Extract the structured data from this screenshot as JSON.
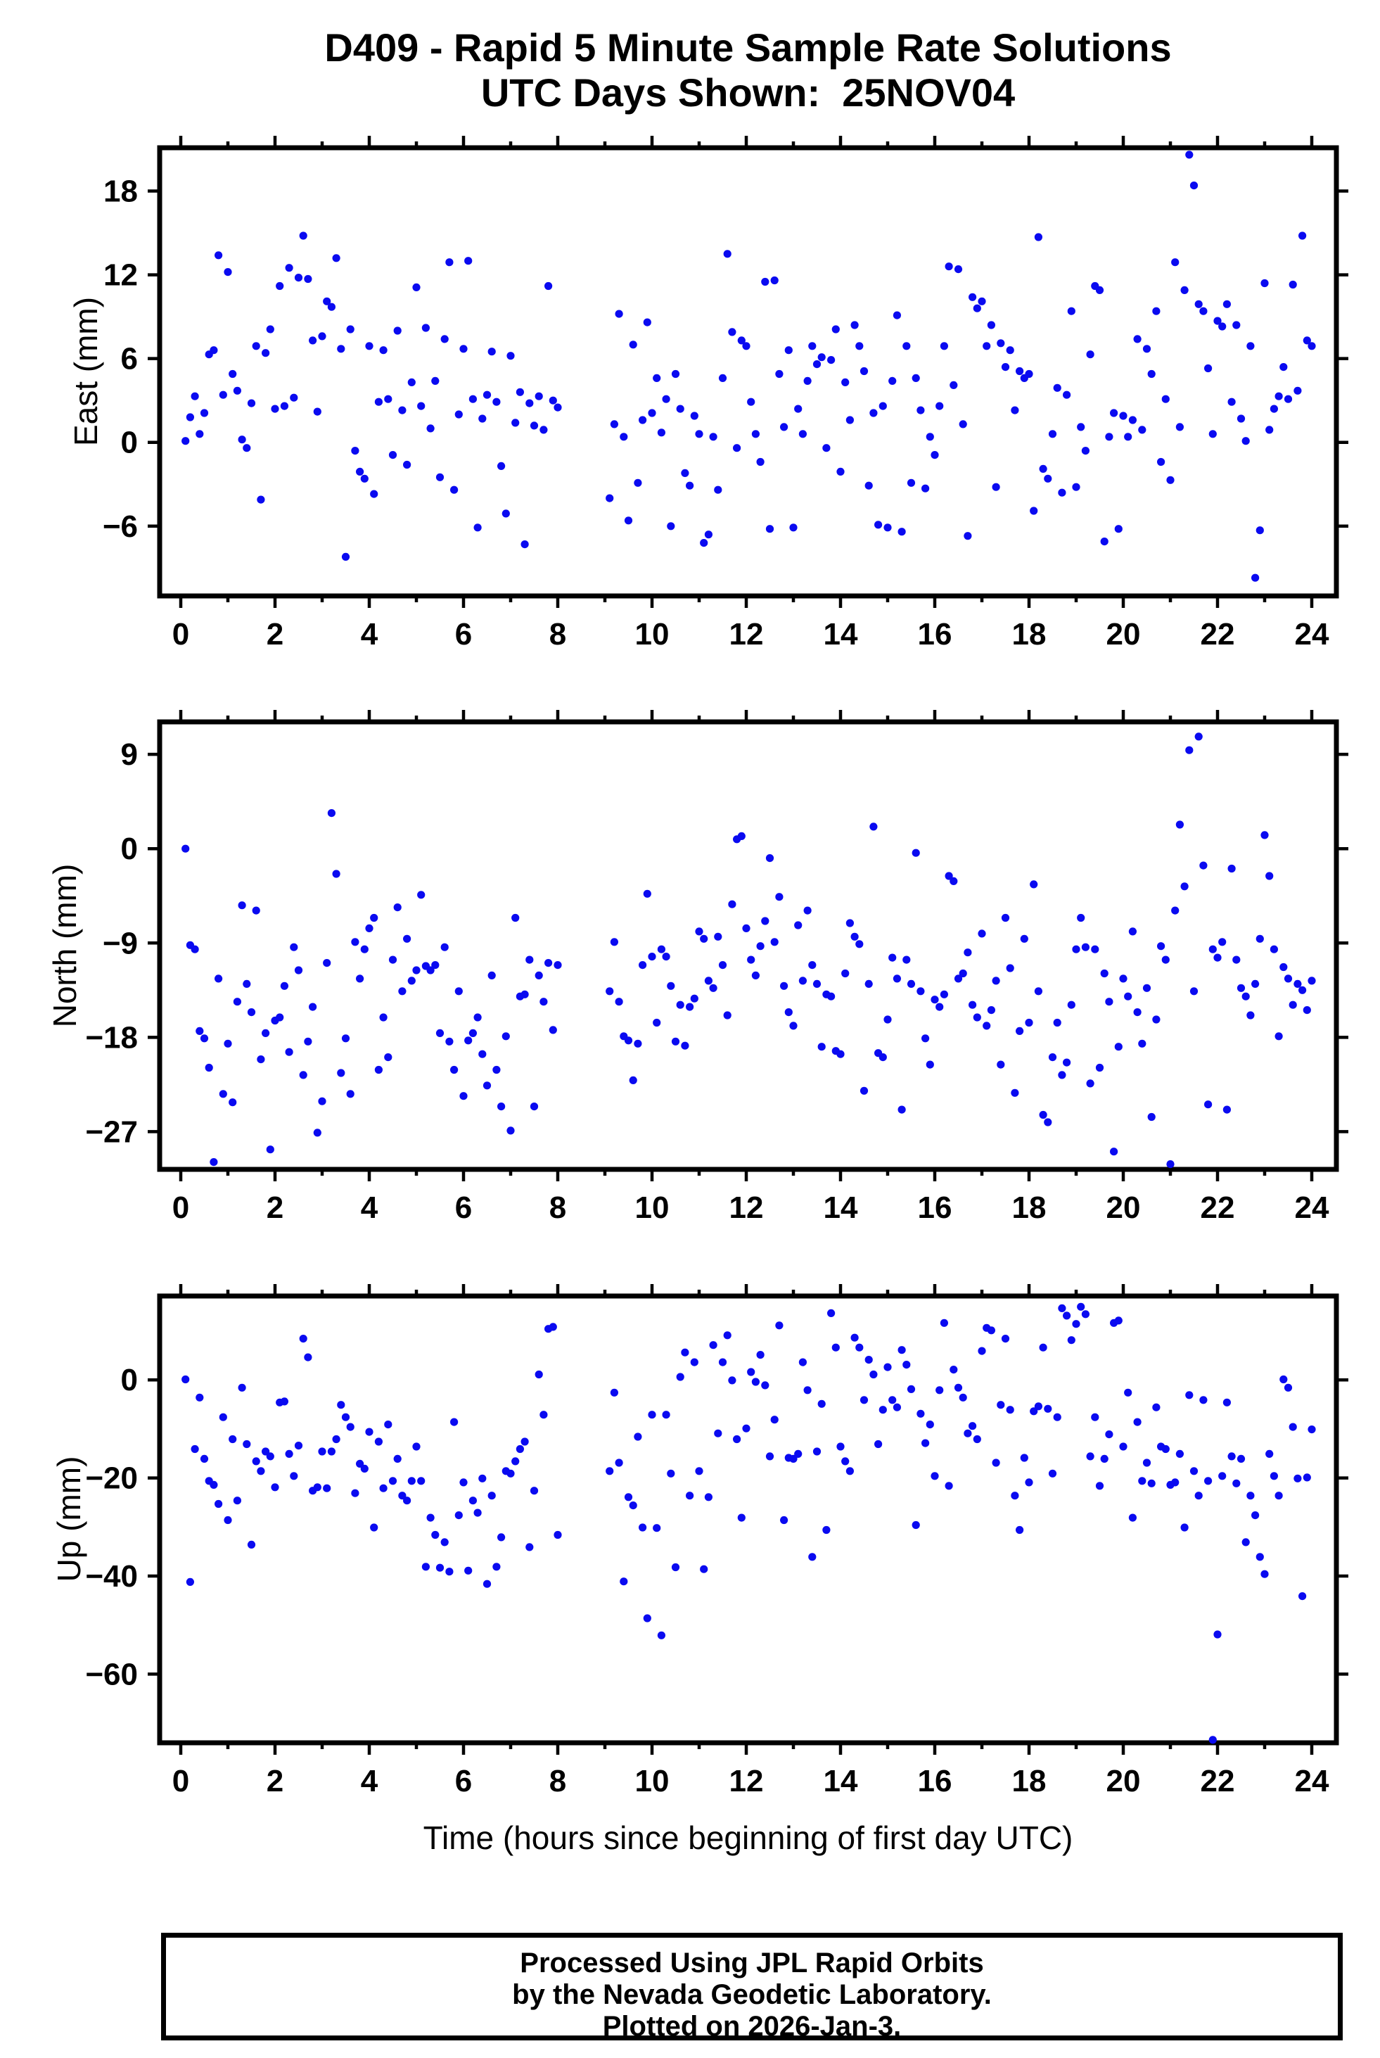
{
  "title": {
    "line1": "D409 - Rapid 5 Minute Sample Rate Solutions",
    "line2": "UTC Days Shown:  25NOV04"
  },
  "footer": {
    "line1": "Processed Using JPL Rapid Orbits",
    "line2": "by the Nevada Geodetic Laboratory.",
    "line3": "Plotted on 2026-Jan-3."
  },
  "marker": {
    "color": "#0a0af0",
    "radius": 5.6,
    "shape": "circle"
  },
  "chart_data": {
    "type": "scatter",
    "title": "D409 - Rapid 5 Minute Sample Rate Solutions",
    "subtitle": "UTC Days Shown: 25NOV04",
    "xlabel": "Time (hours since beginning of first day UTC)",
    "xlim": [
      -0.45,
      24.52
    ],
    "xticks_major": [
      0,
      2,
      4,
      6,
      8,
      10,
      12,
      14,
      16,
      18,
      20,
      22,
      24
    ],
    "xticks_minor": [
      1,
      3,
      5,
      7,
      9,
      11,
      13,
      15,
      17,
      19,
      21,
      23
    ],
    "grid": false,
    "legend": "none",
    "data_gap_hours": [
      8.0,
      9.1
    ],
    "x": [
      0.1,
      0.2,
      0.3,
      0.4,
      0.5,
      0.6,
      0.7,
      0.8,
      0.9,
      1.0,
      1.1,
      1.2,
      1.3,
      1.4,
      1.5,
      1.6,
      1.7,
      1.8,
      1.9,
      2.0,
      2.1,
      2.2,
      2.3,
      2.4,
      2.5,
      2.6,
      2.7,
      2.8,
      2.9,
      3.0,
      3.1,
      3.2,
      3.3,
      3.4,
      3.5,
      3.6,
      3.7,
      3.8,
      3.9,
      4.0,
      4.1,
      4.2,
      4.3,
      4.4,
      4.5,
      4.6,
      4.7,
      4.8,
      4.9,
      5.0,
      5.1,
      5.2,
      5.3,
      5.4,
      5.5,
      5.6,
      5.7,
      5.8,
      5.9,
      6.0,
      6.1,
      6.2,
      6.3,
      6.4,
      6.5,
      6.6,
      6.7,
      6.8,
      6.9,
      7.0,
      7.1,
      7.2,
      7.3,
      7.4,
      7.5,
      7.6,
      7.7,
      7.8,
      7.9,
      8.0,
      9.1,
      9.2,
      9.3,
      9.4,
      9.5,
      9.6,
      9.7,
      9.8,
      9.9,
      10.0,
      10.1,
      10.2,
      10.3,
      10.4,
      10.5,
      10.6,
      10.7,
      10.8,
      10.9,
      11.0,
      11.1,
      11.2,
      11.3,
      11.4,
      11.5,
      11.6,
      11.7,
      11.8,
      11.9,
      12.0,
      12.1,
      12.2,
      12.3,
      12.4,
      12.5,
      12.6,
      12.7,
      12.8,
      12.9,
      13.0,
      13.1,
      13.2,
      13.3,
      13.4,
      13.5,
      13.6,
      13.7,
      13.8,
      13.9,
      14.0,
      14.1,
      14.2,
      14.3,
      14.4,
      14.5,
      14.6,
      14.7,
      14.8,
      14.9,
      15.0,
      15.1,
      15.2,
      15.3,
      15.4,
      15.5,
      15.6,
      15.7,
      15.8,
      15.9,
      16.0,
      16.1,
      16.2,
      16.3,
      16.4,
      16.5,
      16.6,
      16.7,
      16.8,
      16.9,
      17.0,
      17.1,
      17.2,
      17.3,
      17.4,
      17.5,
      17.6,
      17.7,
      17.8,
      17.9,
      18.0,
      18.1,
      18.2,
      18.3,
      18.4,
      18.5,
      18.6,
      18.7,
      18.8,
      18.9,
      19.0,
      19.1,
      19.2,
      19.3,
      19.4,
      19.5,
      19.6,
      19.7,
      19.8,
      19.9,
      20.0,
      20.1,
      20.2,
      20.3,
      20.4,
      20.5,
      20.6,
      20.7,
      20.8,
      20.9,
      21.0,
      21.1,
      21.2,
      21.3,
      21.4,
      21.5,
      21.6,
      21.7,
      21.8,
      21.9,
      22.0,
      22.1,
      22.2,
      22.3,
      22.4,
      22.5,
      22.6,
      22.7,
      22.8,
      22.9,
      23.0,
      23.1,
      23.2,
      23.3,
      23.4,
      23.5,
      23.6,
      23.7,
      23.8,
      23.9,
      24.0
    ],
    "series": [
      {
        "name": "East (mm)",
        "ylim": [
          -11.0,
          21.1
        ],
        "yticks": [
          18,
          12,
          6,
          0,
          -6
        ],
        "values": [
          0.1,
          1.8,
          3.3,
          0.6,
          2.1,
          6.3,
          6.6,
          13.4,
          3.4,
          12.2,
          4.9,
          3.7,
          0.2,
          -0.4,
          2.8,
          6.9,
          -4.1,
          6.4,
          8.1,
          2.4,
          11.2,
          2.6,
          12.5,
          3.2,
          11.8,
          14.8,
          11.7,
          7.3,
          2.2,
          7.6,
          10.1,
          9.7,
          13.2,
          6.7,
          -8.2,
          8.1,
          -0.6,
          -2.1,
          -2.6,
          6.9,
          -3.7,
          2.9,
          6.6,
          3.1,
          -0.9,
          8.0,
          2.3,
          -1.6,
          4.3,
          11.1,
          2.6,
          8.2,
          1.0,
          4.4,
          -2.5,
          7.4,
          12.9,
          -3.4,
          2.0,
          6.7,
          13.0,
          3.1,
          -6.1,
          1.7,
          3.4,
          6.5,
          2.9,
          -1.7,
          -5.1,
          6.2,
          1.4,
          3.6,
          -7.3,
          2.8,
          1.2,
          3.3,
          0.9,
          11.2,
          3.0,
          2.5,
          -4.0,
          1.3,
          9.2,
          0.4,
          -5.6,
          7.0,
          -2.9,
          1.6,
          8.6,
          2.1,
          4.6,
          0.7,
          3.1,
          -6.0,
          4.9,
          2.4,
          -2.2,
          -3.1,
          1.9,
          0.6,
          -7.2,
          -6.6,
          0.4,
          -3.4,
          4.6,
          13.5,
          7.9,
          -0.4,
          7.3,
          6.9,
          2.9,
          0.6,
          -1.4,
          11.5,
          -6.2,
          11.6,
          4.9,
          1.1,
          6.6,
          -6.1,
          2.4,
          0.6,
          4.4,
          6.9,
          5.6,
          6.1,
          -0.4,
          5.9,
          8.1,
          -2.1,
          4.3,
          1.6,
          8.4,
          6.9,
          5.1,
          -3.1,
          2.1,
          -5.9,
          2.6,
          -6.1,
          4.4,
          9.1,
          -6.4,
          6.9,
          -2.9,
          4.6,
          2.3,
          -3.3,
          0.4,
          -0.9,
          2.6,
          6.9,
          12.6,
          4.1,
          12.4,
          1.3,
          -6.7,
          10.4,
          9.6,
          10.1,
          6.9,
          8.4,
          -3.2,
          7.1,
          5.4,
          6.6,
          2.3,
          5.1,
          4.6,
          4.9,
          -4.9,
          14.7,
          -1.9,
          -2.6,
          0.6,
          3.9,
          -3.6,
          3.4,
          9.4,
          -3.2,
          1.1,
          -0.6,
          6.3,
          11.2,
          10.9,
          -7.1,
          0.4,
          2.1,
          -6.2,
          1.9,
          0.4,
          1.6,
          7.4,
          0.9,
          6.7,
          4.9,
          9.4,
          -1.4,
          3.1,
          -2.7,
          12.9,
          1.1,
          10.9,
          20.6,
          18.4,
          9.9,
          9.4,
          5.3,
          0.6,
          8.7,
          8.3,
          9.9,
          2.9,
          8.4,
          1.7,
          0.1,
          6.9,
          -9.7,
          -6.3,
          11.4,
          0.9,
          2.4,
          3.3,
          5.4,
          3.1,
          11.3,
          3.7,
          14.8,
          7.3,
          6.9
        ]
      },
      {
        "name": "North (mm)",
        "ylim": [
          -30.6,
          12.1
        ],
        "yticks": [
          9,
          0,
          -9,
          -18,
          -27
        ],
        "values": [
          0.0,
          -9.2,
          -9.6,
          -17.4,
          -18.1,
          -20.9,
          -29.9,
          -12.4,
          -23.4,
          -18.6,
          -24.2,
          -14.6,
          -5.4,
          -12.9,
          -15.6,
          -5.9,
          -20.1,
          -17.6,
          -28.7,
          -16.4,
          -16.1,
          -13.1,
          -19.4,
          -9.4,
          -11.6,
          -21.6,
          -18.4,
          -15.1,
          -27.1,
          -24.1,
          -10.9,
          3.4,
          -2.4,
          -21.4,
          -18.1,
          -23.4,
          -8.9,
          -12.4,
          -9.6,
          -7.6,
          -6.6,
          -21.1,
          -16.1,
          -19.9,
          -10.6,
          -5.6,
          -13.6,
          -8.6,
          -12.6,
          -11.6,
          -4.4,
          -11.2,
          -11.6,
          -11.1,
          -17.6,
          -9.4,
          -18.4,
          -21.1,
          -13.6,
          -23.6,
          -18.3,
          -17.6,
          -16.1,
          -19.6,
          -22.6,
          -12.1,
          -21.1,
          -24.6,
          -17.9,
          -26.9,
          -6.6,
          -14.1,
          -13.9,
          -10.6,
          -24.6,
          -12.1,
          -14.6,
          -10.9,
          -17.3,
          -11.1,
          -13.6,
          -8.9,
          -14.6,
          -17.9,
          -18.3,
          -22.1,
          -18.6,
          -11.1,
          -4.3,
          -10.3,
          -16.6,
          -9.6,
          -10.3,
          -13.1,
          -18.4,
          -14.9,
          -18.8,
          -15.1,
          -14.3,
          -7.9,
          -8.6,
          -12.6,
          -13.3,
          -8.4,
          -11.1,
          -15.9,
          -5.3,
          0.9,
          1.2,
          -7.6,
          -10.6,
          -12.1,
          -9.3,
          -6.9,
          -0.9,
          -8.9,
          -4.6,
          -13.1,
          -15.6,
          -16.9,
          -7.3,
          -12.6,
          -5.9,
          -11.1,
          -12.9,
          -18.9,
          -13.9,
          -14.1,
          -19.3,
          -19.6,
          -11.9,
          -7.1,
          -8.4,
          -9.1,
          -23.1,
          -12.9,
          2.1,
          -19.5,
          -19.9,
          -16.3,
          -10.4,
          -12.4,
          -24.9,
          -10.6,
          -12.9,
          -0.4,
          -13.6,
          -18.1,
          -20.6,
          -14.4,
          -15.1,
          -13.9,
          -2.6,
          -3.1,
          -12.4,
          -11.9,
          -9.9,
          -14.9,
          -16.1,
          -8.1,
          -16.9,
          -15.4,
          -12.6,
          -20.6,
          -6.6,
          -11.4,
          -23.3,
          -17.4,
          -8.6,
          -16.6,
          -3.4,
          -13.6,
          -25.4,
          -26.1,
          -19.9,
          -16.6,
          -21.6,
          -20.4,
          -14.9,
          -9.6,
          -6.6,
          -9.4,
          -22.4,
          -9.6,
          -20.9,
          -11.9,
          -14.6,
          -28.9,
          -18.9,
          -12.4,
          -14.1,
          -7.9,
          -15.6,
          -18.6,
          -13.3,
          -25.6,
          -16.3,
          -9.3,
          -10.6,
          -30.1,
          -5.9,
          2.3,
          -3.6,
          9.4,
          -13.6,
          10.7,
          -1.6,
          -24.4,
          -9.6,
          -10.4,
          -8.9,
          -24.9,
          -1.9,
          -10.6,
          -13.3,
          -14.1,
          -15.9,
          -12.9,
          -8.6,
          1.3,
          -2.6,
          -9.6,
          -17.9,
          -11.3,
          -12.4,
          -14.9,
          -12.9,
          -13.5,
          -15.4,
          -12.6
        ]
      },
      {
        "name": "Up (mm)",
        "ylim": [
          -74.0,
          17.1
        ],
        "yticks": [
          0,
          -20,
          -40,
          -60
        ],
        "values": [
          0.1,
          -41.2,
          -14.1,
          -3.6,
          -16.1,
          -20.6,
          -21.4,
          -25.3,
          -7.6,
          -28.6,
          -12.1,
          -24.6,
          -1.6,
          -13.1,
          -33.6,
          -16.6,
          -18.6,
          -14.6,
          -15.6,
          -21.9,
          -4.6,
          -4.4,
          -15.1,
          -19.6,
          -13.4,
          8.4,
          4.6,
          -22.6,
          -21.9,
          -14.6,
          -22.1,
          -14.6,
          -12.1,
          -5.1,
          -7.6,
          -9.6,
          -23.1,
          -17.1,
          -18.1,
          -10.6,
          -30.1,
          -12.6,
          -22.1,
          -9.1,
          -20.6,
          -16.1,
          -23.6,
          -24.6,
          -20.6,
          -13.6,
          -20.6,
          -38.1,
          -28.1,
          -31.6,
          -38.3,
          -33.1,
          -39.1,
          -8.6,
          -27.6,
          -20.9,
          -38.9,
          -24.6,
          -27.1,
          -20.1,
          -41.6,
          -23.6,
          -38.1,
          -32.1,
          -18.6,
          -19.1,
          -16.6,
          -14.1,
          -12.6,
          -34.1,
          -22.6,
          1.1,
          -7.1,
          10.4,
          10.8,
          -31.6,
          -18.6,
          -2.6,
          -16.9,
          -41.1,
          -23.9,
          -25.6,
          -11.6,
          -30.1,
          -48.6,
          -7.1,
          -30.2,
          -52.1,
          -7.1,
          -19.1,
          -38.2,
          0.6,
          5.6,
          -23.6,
          3.6,
          -18.6,
          -38.6,
          -23.9,
          7.1,
          -10.9,
          3.6,
          9.1,
          -0.1,
          -12.1,
          -28.1,
          -9.9,
          1.6,
          -0.4,
          5.1,
          -1.1,
          -15.6,
          -8.1,
          11.1,
          -28.6,
          -15.9,
          -16.1,
          -15.1,
          3.6,
          -2.1,
          -36.1,
          -14.6,
          -4.9,
          -30.6,
          13.6,
          6.6,
          -13.6,
          -16.6,
          -18.6,
          8.6,
          6.6,
          -4.1,
          4.1,
          1.1,
          -13.1,
          -6.1,
          2.6,
          -4.1,
          -5.6,
          6.1,
          3.1,
          -1.9,
          -29.6,
          -6.9,
          -12.9,
          -9.1,
          -19.6,
          -2.1,
          11.6,
          -21.6,
          2.1,
          -1.6,
          -3.6,
          -10.9,
          -9.4,
          -12.1,
          5.9,
          10.6,
          10.1,
          -16.9,
          -5.1,
          8.4,
          -6.1,
          -23.6,
          -30.6,
          -15.9,
          -20.9,
          -6.4,
          -5.4,
          6.6,
          -5.9,
          -19.1,
          -7.6,
          14.6,
          13.1,
          8.1,
          11.4,
          14.9,
          13.4,
          -15.6,
          -7.6,
          -21.6,
          -16.1,
          -11.1,
          11.6,
          12.1,
          -13.6,
          -2.6,
          -28.1,
          -8.6,
          -20.6,
          -16.9,
          -21.1,
          -5.6,
          -13.6,
          -14.1,
          -21.4,
          -20.9,
          -15.1,
          -30.1,
          -3.1,
          -18.6,
          -23.6,
          -4.1,
          -20.6,
          -73.4,
          -51.9,
          -19.6,
          -4.6,
          -15.6,
          -21.1,
          -16.1,
          -33.1,
          -23.6,
          -27.6,
          -36.1,
          -39.6,
          -15.1,
          -19.6,
          -23.6,
          0.1,
          -1.6,
          -9.6,
          -20.1,
          -44.1,
          -19.9,
          -10.1
        ]
      }
    ]
  }
}
